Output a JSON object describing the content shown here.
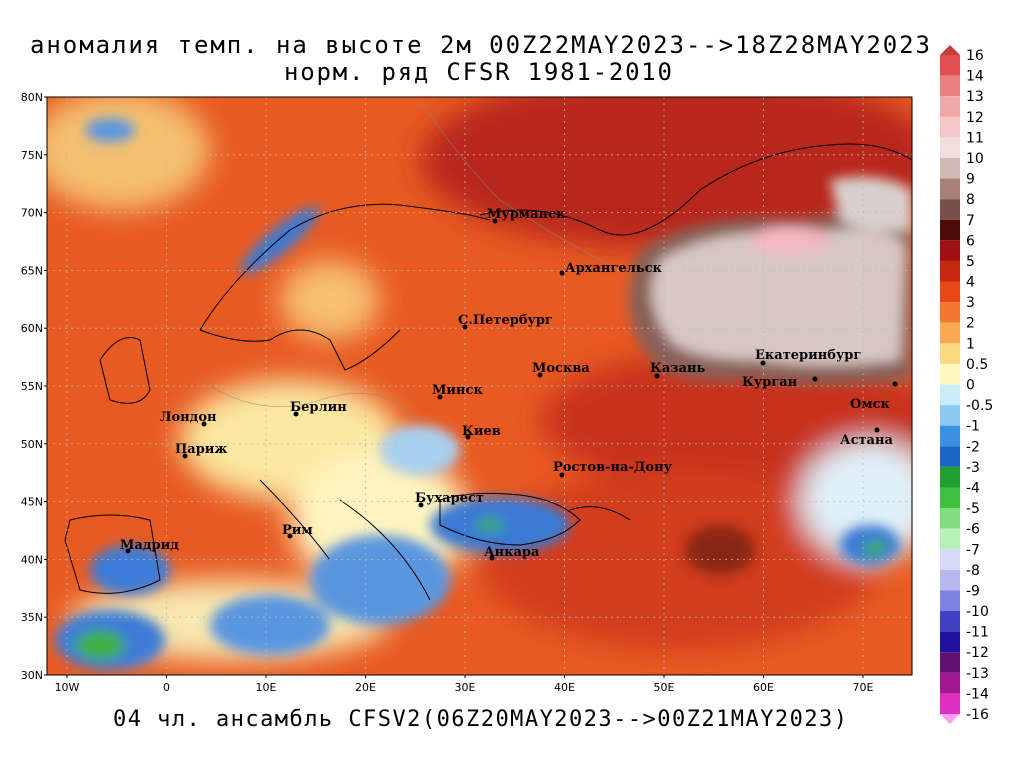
{
  "title": [
    "аномалия темп. на высоте 2м 00Z22MAY2023-->18Z28MAY2023",
    "норм. ряд CFSR 1981-2010"
  ],
  "footer": "04 чл. ансамбль CFSV2(06Z20MAY2023-->00Z21MAY2023)",
  "lat_labels": [
    "80N",
    "75N",
    "70N",
    "65N",
    "60N",
    "55N",
    "50N",
    "45N",
    "40N",
    "35N",
    "30N"
  ],
  "lon_labels": [
    "10W",
    "0",
    "10E",
    "20E",
    "30E",
    "40E",
    "50E",
    "60E",
    "70E"
  ],
  "cities": [
    "Мурманск",
    "Архангельск",
    "С.Петербург",
    "Москва",
    "Казань",
    "Екатеринбург",
    "Курган",
    "Омск",
    "Астана",
    "Минск",
    "Берлин",
    "Лондон",
    "Париж",
    "Киев",
    "Ростов-на-Дону",
    "Бухарест",
    "Рим",
    "Мадрид",
    "Анкара"
  ],
  "colorbar": [
    "16",
    "14",
    "13",
    "12",
    "11",
    "10",
    "9",
    "8",
    "7",
    "6",
    "5",
    "4",
    "3",
    "2",
    "1",
    "0.5",
    "0",
    "-0.5",
    "-1",
    "-2",
    "-3",
    "-4",
    "-5",
    "-6",
    "-7",
    "-8",
    "-9",
    "-10",
    "-11",
    "-12",
    "-13",
    "-14",
    "-16"
  ]
}
